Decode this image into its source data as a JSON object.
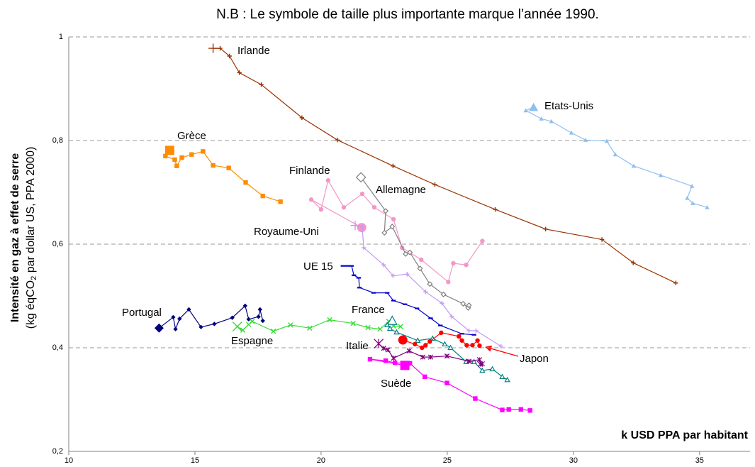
{
  "chart_data": {
    "type": "line",
    "title": "N.B : Le symbole de taille plus importante marque l’année 1990.",
    "y_label": "Intensité en gaz à effet de serre",
    "y_label_note": {
      "before": "(kg  éqCO",
      "sub": "2",
      "after": " par dollar US, PPA 2000)"
    },
    "x_label": "k USD PPA par habitant",
    "xlim": [
      10,
      37
    ],
    "xticks": [
      10,
      15,
      20,
      25,
      30,
      35
    ],
    "ylim": [
      0.2,
      1
    ],
    "yticks": [
      {
        "value": 0.2,
        "label": "0,2"
      },
      {
        "value": 0.4,
        "label": "0,4"
      },
      {
        "value": 0.6,
        "label": "0,6"
      },
      {
        "value": 0.8,
        "label": "0,8"
      },
      {
        "value": 1,
        "label": "1"
      }
    ],
    "grid": true,
    "series": [
      {
        "name": "Irlande",
        "color": "#993300",
        "marker": "plus",
        "x": [
          15.72,
          16.0,
          16.37,
          16.76,
          17.63,
          19.24,
          20.65,
          22.85,
          24.51,
          26.9,
          28.9,
          31.13,
          32.37,
          34.06
        ],
        "values": [
          0.978,
          0.978,
          0.963,
          0.931,
          0.908,
          0.844,
          0.801,
          0.751,
          0.715,
          0.667,
          0.629,
          0.609,
          0.564,
          0.525
        ]
      },
      {
        "name": "Etats-Unis",
        "color": "#8fbfef",
        "marker": "triangle",
        "x": [
          28.42,
          28.11,
          28.73,
          29.13,
          29.92,
          30.48,
          31.32,
          31.66,
          32.39,
          33.46,
          34.7,
          34.51,
          34.73,
          35.3
        ],
        "values": [
          0.864,
          0.858,
          0.842,
          0.837,
          0.815,
          0.801,
          0.799,
          0.773,
          0.751,
          0.733,
          0.712,
          0.689,
          0.679,
          0.671
        ]
      },
      {
        "name": "Grèce",
        "color": "#ff8c00",
        "marker": "square",
        "x": [
          14.0,
          13.83,
          14.2,
          14.28,
          14.48,
          14.87,
          15.32,
          15.72,
          16.34,
          17.01,
          17.69,
          18.39
        ],
        "values": [
          0.781,
          0.77,
          0.763,
          0.751,
          0.767,
          0.773,
          0.779,
          0.752,
          0.747,
          0.719,
          0.693,
          0.682
        ]
      },
      {
        "name": "Finlande",
        "color": "#f596c8",
        "marker": "circle",
        "x": [
          21.61,
          19.61,
          20.0,
          20.28,
          20.9,
          21.63,
          22.11,
          22.87,
          23.21,
          23.97,
          25.04,
          25.24,
          25.75,
          26.39
        ],
        "values": [
          0.632,
          0.686,
          0.667,
          0.723,
          0.671,
          0.697,
          0.671,
          0.648,
          0.593,
          0.57,
          0.527,
          0.563,
          0.56,
          0.606
        ]
      },
      {
        "name": "Allemagne",
        "color": "#808080",
        "marker": "diamond-open",
        "x": [
          21.58,
          22.56,
          22.51,
          22.82,
          23.35,
          23.52,
          23.92,
          24.31,
          24.85,
          25.63,
          25.83,
          25.86
        ],
        "values": [
          0.729,
          0.664,
          0.622,
          0.634,
          0.581,
          0.584,
          0.553,
          0.523,
          0.503,
          0.485,
          0.477,
          0.482
        ]
      },
      {
        "name": "Royaume-Uni",
        "color": "#c39af5",
        "marker": "plus",
        "x": [
          21.35,
          21.63,
          21.69,
          22.48,
          22.85,
          23.41,
          24.14,
          24.79,
          25.18,
          25.86,
          26.14,
          27.13
        ],
        "values": [
          0.636,
          0.633,
          0.593,
          0.56,
          0.539,
          0.542,
          0.508,
          0.486,
          0.46,
          0.433,
          0.433,
          0.403
        ]
      },
      {
        "name": "UE 15",
        "color": "#0000cc",
        "marker": "dash",
        "x": [
          20.96,
          21.21,
          21.3,
          21.49,
          21.52,
          22.08,
          22.62,
          22.87,
          23.32,
          23.8,
          24.34,
          24.73,
          25.58,
          26.06
        ],
        "values": [
          0.558,
          0.558,
          0.54,
          0.535,
          0.516,
          0.506,
          0.506,
          0.491,
          0.484,
          0.476,
          0.457,
          0.443,
          0.427,
          0.425
        ]
      },
      {
        "name": "Portugal",
        "color": "#000080",
        "marker": "diamond",
        "x": [
          13.58,
          14.14,
          14.23,
          14.39,
          14.76,
          15.24,
          15.77,
          16.48,
          16.99,
          17.13,
          17.52,
          17.58,
          17.69
        ],
        "values": [
          0.438,
          0.459,
          0.436,
          0.456,
          0.474,
          0.44,
          0.446,
          0.458,
          0.481,
          0.455,
          0.46,
          0.474,
          0.452
        ]
      },
      {
        "name": "Espagne",
        "color": "#33dd33",
        "marker": "x",
        "x": [
          16.68,
          16.9,
          17.13,
          17.27,
          18.11,
          18.79,
          19.55,
          20.34,
          21.27,
          21.86,
          22.34,
          22.68,
          22.87,
          23.15
        ],
        "values": [
          0.441,
          0.434,
          0.445,
          0.451,
          0.432,
          0.444,
          0.438,
          0.454,
          0.447,
          0.439,
          0.436,
          0.451,
          0.442,
          0.441
        ]
      },
      {
        "name": "France",
        "color": "#008080",
        "marker": "triangle-open",
        "x": [
          22.82,
          22.62,
          22.73,
          22.99,
          23.83,
          24.42,
          24.9,
          25.13,
          25.75,
          26.06,
          26.39,
          26.79,
          27.18,
          27.38
        ],
        "values": [
          0.452,
          0.444,
          0.437,
          0.43,
          0.414,
          0.418,
          0.407,
          0.4,
          0.373,
          0.373,
          0.356,
          0.359,
          0.344,
          0.338
        ]
      },
      {
        "name": "Italie",
        "color": "#800080",
        "marker": "asterisk",
        "x": [
          22.28,
          22.48,
          22.65,
          22.87,
          23.49,
          24.03,
          24.34,
          24.99,
          25.86,
          26.28,
          26.31,
          26.39
        ],
        "values": [
          0.408,
          0.399,
          0.396,
          0.38,
          0.394,
          0.382,
          0.382,
          0.384,
          0.374,
          0.377,
          0.368,
          0.369
        ]
      },
      {
        "name": "Japon",
        "color": "#ff0000",
        "marker": "circle",
        "x": [
          23.24,
          23.72,
          24.0,
          24.14,
          24.31,
          24.76,
          25.46,
          25.58,
          25.77,
          26.0,
          26.2,
          26.28
        ],
        "values": [
          0.415,
          0.407,
          0.4,
          0.405,
          0.412,
          0.429,
          0.422,
          0.414,
          0.405,
          0.405,
          0.414,
          0.404
        ]
      },
      {
        "name": "Suède",
        "color": "#ff00ff",
        "marker": "square",
        "x": [
          23.32,
          21.94,
          22.56,
          22.93,
          23.52,
          24.11,
          24.99,
          26.11,
          27.18,
          27.44,
          27.92,
          28.28
        ],
        "values": [
          0.366,
          0.378,
          0.375,
          0.371,
          0.37,
          0.344,
          0.332,
          0.302,
          0.28,
          0.281,
          0.281,
          0.279
        ]
      }
    ]
  }
}
